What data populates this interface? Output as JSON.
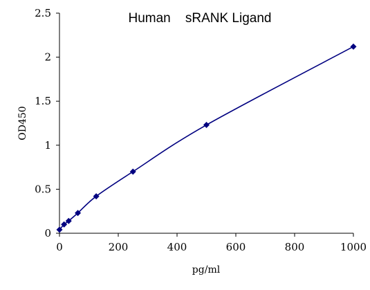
{
  "chart_data": {
    "type": "scatter",
    "title": "Human    sRANK Ligand",
    "xlabel": "pg/ml",
    "ylabel": "OD450",
    "xlim": [
      0,
      1000
    ],
    "ylim": [
      0,
      2.5
    ],
    "x_ticks": [
      "0",
      "200",
      "400",
      "600",
      "800",
      "1000"
    ],
    "y_ticks": [
      "0",
      "0.5",
      "1",
      "1.5",
      "2",
      "2.5"
    ],
    "grid": false,
    "legend": "none",
    "series": [
      {
        "x": [
          0,
          15.6,
          31.2,
          62.5,
          125,
          250,
          500,
          1000
        ],
        "y": [
          0.04,
          0.1,
          0.14,
          0.23,
          0.42,
          0.7,
          1.23,
          2.12
        ],
        "marker": "diamond",
        "fit": "smooth-curve"
      }
    ],
    "colors": {
      "series": "#000080",
      "axis": "#000000"
    }
  }
}
